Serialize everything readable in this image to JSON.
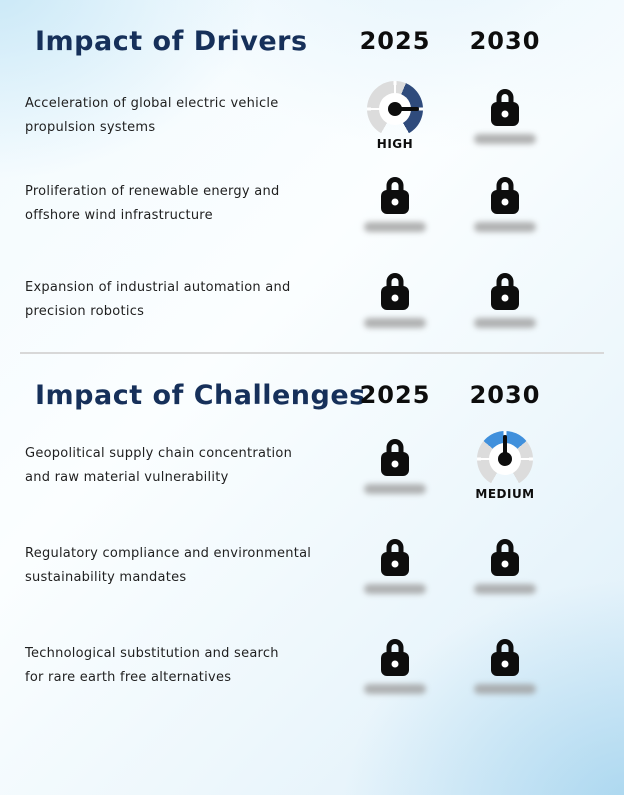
{
  "drivers": {
    "title": "Impact of Drivers",
    "year1": "2025",
    "year2": "2030",
    "rows": [
      {
        "line1": "Acceleration of global electric vehicle",
        "line2": "propulsion systems",
        "impact_2025": "HIGH",
        "impact_2030": "locked"
      },
      {
        "line1": "Proliferation of renewable energy and",
        "line2": "offshore wind infrastructure",
        "impact_2025": "locked",
        "impact_2030": "locked"
      },
      {
        "line1": "Expansion of industrial automation and",
        "line2": "precision robotics",
        "impact_2025": "locked",
        "impact_2030": "locked"
      }
    ]
  },
  "challenges": {
    "title": "Impact of Challenges",
    "year1": "2025",
    "year2": "2030",
    "rows": [
      {
        "line1": "Geopolitical supply chain concentration",
        "line2": "and raw material vulnerability",
        "impact_2025": "locked",
        "impact_2030": "MEDIUM"
      },
      {
        "line1": "Regulatory compliance and environmental",
        "line2": "sustainability mandates",
        "impact_2025": "locked",
        "impact_2030": "locked"
      },
      {
        "line1": "Technological substitution and search",
        "line2": "for rare earth free alternatives",
        "impact_2025": "locked",
        "impact_2030": "locked"
      }
    ]
  },
  "gauge_labels": {
    "high": "HIGH",
    "medium": "MEDIUM"
  },
  "colors": {
    "accent_navy": "#2F4B7C",
    "accent_blue": "#4090DC",
    "heading_navy": "#16305A",
    "ring_gray": "#DCDCDC",
    "text_dark": "#1F1F1F",
    "pill_gray": "#9E9E9E",
    "divider_gray": "#D8D8D8"
  },
  "chart_data": {
    "type": "table",
    "sections": [
      {
        "title": "Impact of Drivers",
        "columns": [
          "2025",
          "2030"
        ],
        "rows": [
          {
            "label": "Acceleration of global electric vehicle propulsion systems",
            "2025": "HIGH",
            "2030": "locked"
          },
          {
            "label": "Proliferation of renewable energy and offshore wind infrastructure",
            "2025": "locked",
            "2030": "locked"
          },
          {
            "label": "Expansion of industrial automation and precision robotics",
            "2025": "locked",
            "2030": "locked"
          }
        ]
      },
      {
        "title": "Impact of Challenges",
        "columns": [
          "2025",
          "2030"
        ],
        "rows": [
          {
            "label": "Geopolitical supply chain concentration and raw material vulnerability",
            "2025": "locked",
            "2030": "MEDIUM"
          },
          {
            "label": "Regulatory compliance and environmental sustainability mandates",
            "2025": "locked",
            "2030": "locked"
          },
          {
            "label": "Technological substitution and search for rare earth free alternatives",
            "2025": "locked",
            "2030": "locked"
          }
        ]
      }
    ]
  }
}
